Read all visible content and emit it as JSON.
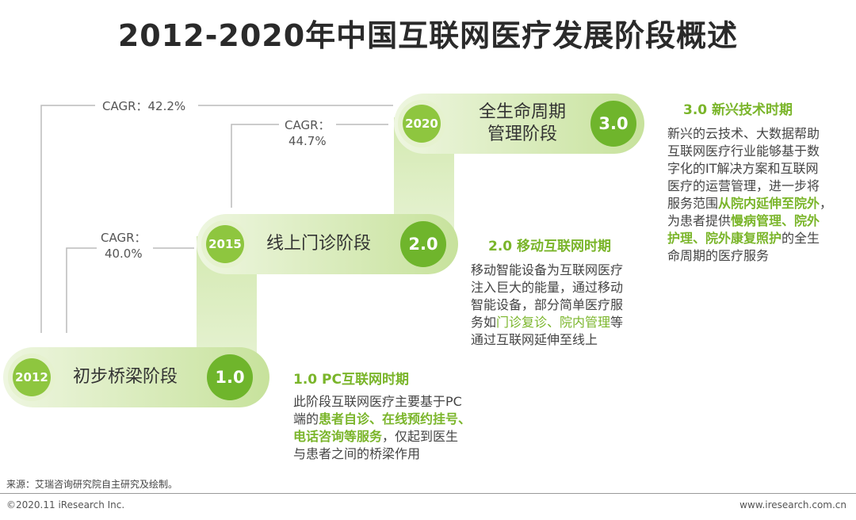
{
  "title": "2012-2020年中国互联网医疗发展阶段概述",
  "cagr": {
    "c1": "CAGR：42.2%",
    "c2_line1": "CAGR：",
    "c2_line2": "44.7%",
    "c3_line1": "CAGR：",
    "c3_line2": "40.0%"
  },
  "stages": [
    {
      "year": "2012",
      "label": "初步桥梁阶段",
      "version": "1.0"
    },
    {
      "year": "2015",
      "label": "线上门诊阶段",
      "version": "2.0"
    },
    {
      "year": "2020",
      "label_line1": "全生命周期",
      "label_line2": "管理阶段",
      "version": "3.0"
    }
  ],
  "eras": {
    "e1": {
      "title": "1.0 PC互联网时期",
      "l1": "此阶段互联网医疗主要基于PC",
      "l2_a": "端的",
      "l2_b": "患者自诊、在线预约挂号、",
      "l3_a": "电话咨询等服务",
      "l3_b": "，仅起到医生",
      "l4": "与患者之间的桥梁作用"
    },
    "e2": {
      "title": "2.0 移动互联网时期",
      "l1": "移动智能设备为互联网医疗",
      "l2": "注入巨大的能量，通过移动",
      "l3": "智能设备，部分简单医疗服",
      "l4_a": "务如",
      "l4_b": "门诊复诊、院内管理",
      "l4_c": "等",
      "l5": "通过互联网延伸至线上"
    },
    "e3": {
      "title": "3.0 新兴技术时期",
      "l1": "新兴的云技术、大数据帮助",
      "l2": "互联网医疗行业能够基于数",
      "l3": "字化的IT解决方案和互联网",
      "l4": "医疗的运营管理，进一步将",
      "l5_a": "服务范围",
      "l5_b": "从院内延伸至院外",
      "l5_c": "，",
      "l6_a": "为患者提供",
      "l6_b": "慢病管理、院外",
      "l7_a": "护理、院外康复照护",
      "l7_b": "的全生",
      "l8": "命周期的医疗服务"
    }
  },
  "source": "来源：艾瑞咨询研究院自主研究及绘制。",
  "copyright": "©2020.11 iResearch Inc.",
  "website": "www.iresearch.com.cn",
  "colors": {
    "accent": "#7ab52a",
    "pill": "#cfe6a8",
    "dark_green": "#6fb52c"
  }
}
